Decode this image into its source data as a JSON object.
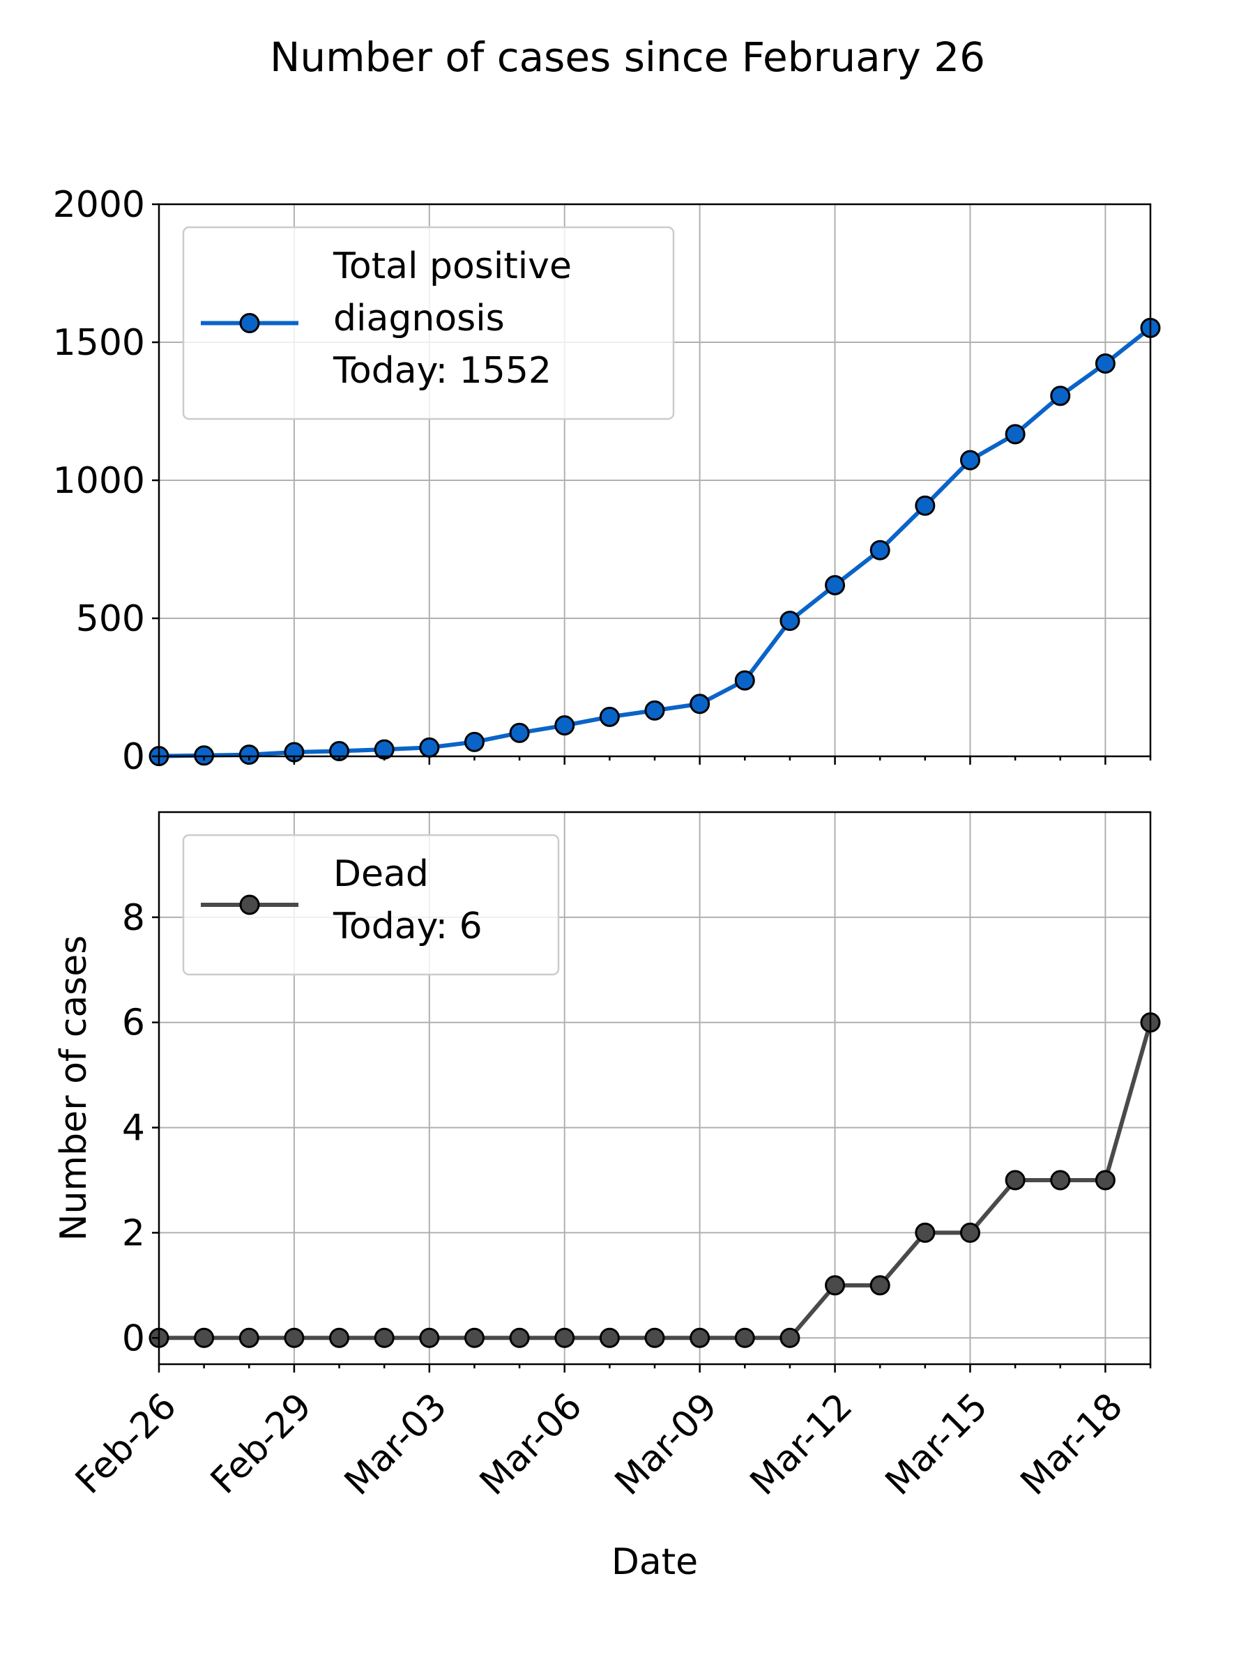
{
  "figure": {
    "title": "Number of cases since February 26"
  },
  "chart_data": [
    {
      "type": "line",
      "x": [
        "Feb-26",
        "Feb-27",
        "Feb-28",
        "Feb-29",
        "Mar-01",
        "Mar-02",
        "Mar-03",
        "Mar-04",
        "Mar-05",
        "Mar-06",
        "Mar-07",
        "Mar-08",
        "Mar-09",
        "Mar-10",
        "Mar-11",
        "Mar-12",
        "Mar-13",
        "Mar-14",
        "Mar-15",
        "Mar-16",
        "Mar-17",
        "Mar-18",
        "Mar-19"
      ],
      "series": [
        {
          "name": "Total positive diagnosis",
          "legend_lines": [
            "Total positive",
            "diagnosis",
            "Today: 1552"
          ],
          "color": "#0a64c8",
          "values": [
            1,
            3,
            6,
            15,
            19,
            25,
            32,
            52,
            85,
            112,
            143,
            166,
            190,
            275,
            491,
            620,
            747,
            908,
            1073,
            1167,
            1306,
            1423,
            1552
          ]
        }
      ],
      "ylim": [
        0,
        2000
      ],
      "yticks": [
        0,
        500,
        1000,
        1500,
        2000
      ],
      "ylabel": "",
      "xlabel": "",
      "grid": true,
      "legend": "upper-left"
    },
    {
      "type": "line",
      "x": [
        "Feb-26",
        "Feb-27",
        "Feb-28",
        "Feb-29",
        "Mar-01",
        "Mar-02",
        "Mar-03",
        "Mar-04",
        "Mar-05",
        "Mar-06",
        "Mar-07",
        "Mar-08",
        "Mar-09",
        "Mar-10",
        "Mar-11",
        "Mar-12",
        "Mar-13",
        "Mar-14",
        "Mar-15",
        "Mar-16",
        "Mar-17",
        "Mar-18",
        "Mar-19"
      ],
      "series": [
        {
          "name": "Dead",
          "legend_lines": [
            "Dead",
            "Today: 6"
          ],
          "color": "#4a4a4a",
          "values": [
            0,
            0,
            0,
            0,
            0,
            0,
            0,
            0,
            0,
            0,
            0,
            0,
            0,
            0,
            0,
            1,
            1,
            2,
            2,
            3,
            3,
            3,
            6
          ]
        }
      ],
      "ylim": [
        -0.5,
        10
      ],
      "yticks": [
        0,
        2,
        4,
        6,
        8
      ],
      "ylabel": "Number of cases",
      "xlabel": "Date",
      "xticks": [
        "Feb-26",
        "Feb-29",
        "Mar-03",
        "Mar-06",
        "Mar-09",
        "Mar-12",
        "Mar-15",
        "Mar-18"
      ],
      "grid": true,
      "legend": "upper-left"
    }
  ]
}
